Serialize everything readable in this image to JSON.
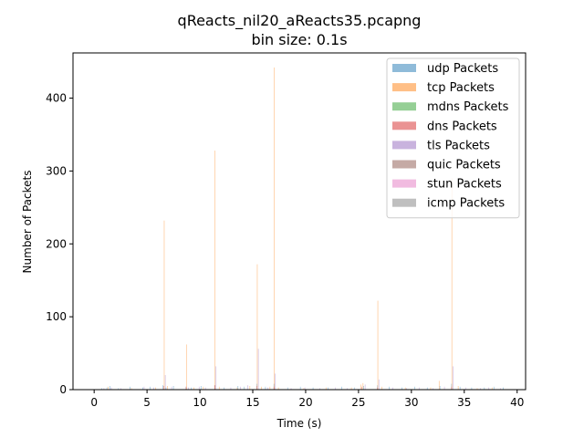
{
  "chart_data": {
    "type": "bar",
    "title": "qReacts_nil20_aReacts35.pcapng",
    "subtitle": "bin size: 0.1s",
    "xlabel": "Time (s)",
    "ylabel": "Number of Packets",
    "xlim": [
      -2,
      40.8
    ],
    "ylim": [
      0,
      462
    ],
    "xticks": [
      0,
      5,
      10,
      15,
      20,
      25,
      30,
      35,
      40
    ],
    "yticks": [
      0,
      100,
      200,
      300,
      400
    ],
    "bin_size": 0.1,
    "grid": false,
    "legend_position": "top-right",
    "series": [
      {
        "name": "udp Packets",
        "color": "#1f77b4",
        "points": [
          [
            0.7,
            2
          ],
          [
            1.2,
            3
          ],
          [
            1.5,
            5
          ],
          [
            2.3,
            2
          ],
          [
            3.4,
            4
          ],
          [
            4.6,
            3
          ],
          [
            5.3,
            4
          ],
          [
            6.5,
            6
          ],
          [
            6.8,
            3
          ],
          [
            7.5,
            5
          ],
          [
            8.7,
            4
          ],
          [
            9.2,
            3
          ],
          [
            10.1,
            5
          ],
          [
            11.4,
            6
          ],
          [
            12.3,
            3
          ],
          [
            13.6,
            5
          ],
          [
            14.2,
            4
          ],
          [
            15.4,
            8
          ],
          [
            16.2,
            4
          ],
          [
            17.0,
            8
          ],
          [
            18.3,
            3
          ],
          [
            19.5,
            4
          ],
          [
            20.7,
            3
          ],
          [
            22.1,
            3
          ],
          [
            23.4,
            4
          ],
          [
            24.6,
            3
          ],
          [
            25.5,
            5
          ],
          [
            26.8,
            6
          ],
          [
            27.9,
            4
          ],
          [
            29.1,
            3
          ],
          [
            30.3,
            4
          ],
          [
            31.5,
            3
          ],
          [
            32.7,
            5
          ],
          [
            33.8,
            8
          ],
          [
            34.6,
            4
          ],
          [
            35.7,
            3
          ],
          [
            36.9,
            3
          ],
          [
            37.8,
            4
          ],
          [
            38.7,
            3
          ]
        ]
      },
      {
        "name": "tcp Packets",
        "color": "#ff7f0e",
        "points": [
          [
            1.3,
            4
          ],
          [
            3.5,
            2
          ],
          [
            5.8,
            3
          ],
          [
            6.6,
            232
          ],
          [
            6.9,
            5
          ],
          [
            8.7,
            62
          ],
          [
            9.4,
            3
          ],
          [
            10.3,
            4
          ],
          [
            11.4,
            328
          ],
          [
            11.8,
            4
          ],
          [
            13.5,
            3
          ],
          [
            14.7,
            5
          ],
          [
            15.4,
            172
          ],
          [
            15.8,
            4
          ],
          [
            16.6,
            4
          ],
          [
            17.0,
            442
          ],
          [
            17.4,
            3
          ],
          [
            19.8,
            2
          ],
          [
            21.9,
            3
          ],
          [
            24.3,
            3
          ],
          [
            25.2,
            7
          ],
          [
            25.4,
            9
          ],
          [
            26.8,
            122
          ],
          [
            27.2,
            4
          ],
          [
            29.4,
            3
          ],
          [
            31.8,
            3
          ],
          [
            32.6,
            12
          ],
          [
            33.8,
            290
          ],
          [
            34.4,
            5
          ],
          [
            36.2,
            2
          ],
          [
            37.6,
            3
          ]
        ]
      },
      {
        "name": "mdns Packets",
        "color": "#2ca02c",
        "points": []
      },
      {
        "name": "dns Packets",
        "color": "#d62728",
        "points": [
          [
            6.6,
            5
          ],
          [
            8.7,
            4
          ],
          [
            11.4,
            6
          ],
          [
            15.4,
            5
          ],
          [
            17.0,
            4
          ],
          [
            25.3,
            4
          ],
          [
            26.8,
            3
          ],
          [
            33.8,
            4
          ]
        ]
      },
      {
        "name": "tls Packets",
        "color": "#9467bd",
        "points": [
          [
            0.9,
            2
          ],
          [
            1.6,
            3
          ],
          [
            2.5,
            2
          ],
          [
            4.7,
            4
          ],
          [
            5.6,
            3
          ],
          [
            6.7,
            20
          ],
          [
            7.3,
            4
          ],
          [
            8.9,
            3
          ],
          [
            9.9,
            4
          ],
          [
            10.5,
            3
          ],
          [
            11.5,
            32
          ],
          [
            12.9,
            3
          ],
          [
            13.8,
            4
          ],
          [
            14.5,
            6
          ],
          [
            15.5,
            56
          ],
          [
            16.4,
            3
          ],
          [
            17.1,
            22
          ],
          [
            18.6,
            2
          ],
          [
            19.9,
            3
          ],
          [
            21.3,
            2
          ],
          [
            22.8,
            3
          ],
          [
            23.9,
            2
          ],
          [
            25.6,
            7
          ],
          [
            26.9,
            14
          ],
          [
            28.2,
            3
          ],
          [
            29.5,
            2
          ],
          [
            30.7,
            3
          ],
          [
            32.0,
            2
          ],
          [
            33.1,
            4
          ],
          [
            33.9,
            32
          ],
          [
            35.1,
            3
          ],
          [
            36.5,
            2
          ],
          [
            37.3,
            3
          ],
          [
            38.4,
            2
          ]
        ]
      },
      {
        "name": "quic Packets",
        "color": "#8c564b",
        "points": []
      },
      {
        "name": "stun Packets",
        "color": "#e377c2",
        "points": []
      },
      {
        "name": "icmp Packets",
        "color": "#7f7f7f",
        "points": []
      }
    ]
  }
}
